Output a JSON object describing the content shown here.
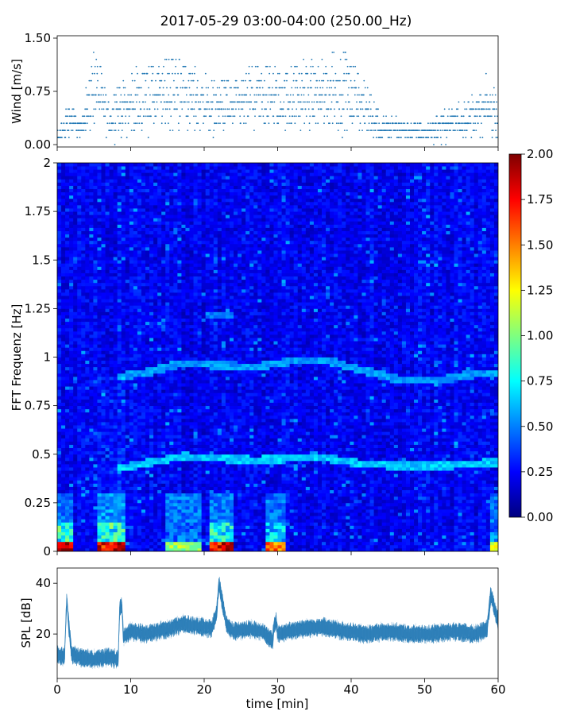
{
  "title": "2017-05-29 03:00-04:00 (250.00_Hz)",
  "colors": {
    "series": "#1f77b4",
    "colormap": [
      "#00007f",
      "#0000ff",
      "#007fff",
      "#00ffff",
      "#7fff7f",
      "#ffff00",
      "#ff7f00",
      "#ff0000",
      "#7f0000"
    ]
  },
  "chart_data": [
    {
      "type": "scatter",
      "ylabel": "Wind [m/s]",
      "xlabel": "",
      "xlim": [
        0,
        60
      ],
      "ylim": [
        0,
        1.5
      ],
      "yticks": [
        "0.00",
        "0.75",
        "1.50"
      ],
      "grid": false,
      "note_levels": [
        0.0,
        0.1,
        0.2,
        0.3,
        0.4,
        0.5,
        0.6,
        0.7,
        0.8,
        0.9,
        1.0,
        1.1,
        1.2,
        1.3,
        1.4,
        1.5
      ],
      "samples": [
        {
          "x": 0.2,
          "y": 0.2
        },
        {
          "x": 1.0,
          "y": 0.4
        },
        {
          "x": 1.8,
          "y": 0.7
        },
        {
          "x": 2.5,
          "y": 0.5
        },
        {
          "x": 3.2,
          "y": 0.3
        },
        {
          "x": 4.0,
          "y": 0.9
        },
        {
          "x": 5.5,
          "y": 1.5
        },
        {
          "x": 5.6,
          "y": 1.3
        },
        {
          "x": 7.0,
          "y": 0.6
        },
        {
          "x": 9.0,
          "y": 0.9
        },
        {
          "x": 15.5,
          "y": 1.2
        },
        {
          "x": 18.5,
          "y": 1.1
        },
        {
          "x": 21.0,
          "y": 0.9
        },
        {
          "x": 24.5,
          "y": 0.9
        },
        {
          "x": 26.5,
          "y": 1.1
        },
        {
          "x": 30.5,
          "y": 1.1
        },
        {
          "x": 39.5,
          "y": 1.3
        },
        {
          "x": 44.0,
          "y": 0.4
        },
        {
          "x": 50.0,
          "y": 0.3
        },
        {
          "x": 57.0,
          "y": 0.7
        },
        {
          "x": 58.5,
          "y": 0.9
        },
        {
          "x": 60.0,
          "y": 0.7
        }
      ]
    },
    {
      "type": "heatmap",
      "ylabel": "FFT Frequenz [Hz]",
      "xlabel": "",
      "xlim": [
        0,
        60
      ],
      "ylim": [
        0,
        2
      ],
      "yticks": [
        "0",
        "0.25",
        "0.5",
        "0.75",
        "1",
        "1.25",
        "1.5",
        "1.75",
        "2"
      ],
      "colorbar": {
        "range": [
          0.0,
          2.0
        ],
        "ticks": [
          "0.00",
          "0.25",
          "0.50",
          "0.75",
          "1.00",
          "1.25",
          "1.50",
          "1.75",
          "2.00"
        ]
      },
      "background_level": 0.2,
      "ridges": [
        {
          "x": [
            8,
            10,
            13,
            17,
            22,
            27,
            32,
            37,
            42,
            47,
            52,
            56,
            60
          ],
          "y": [
            0.42,
            0.44,
            0.46,
            0.49,
            0.48,
            0.47,
            0.48,
            0.48,
            0.45,
            0.44,
            0.44,
            0.45,
            0.46
          ],
          "level": 0.65
        },
        {
          "x": [
            8,
            12,
            17,
            22,
            27,
            32,
            37,
            42,
            47,
            52,
            56,
            60
          ],
          "y": [
            0.9,
            0.92,
            0.97,
            0.96,
            0.95,
            0.98,
            0.98,
            0.93,
            0.88,
            0.88,
            0.91,
            0.92
          ],
          "level": 0.55
        },
        {
          "x": [
            20,
            22,
            24
          ],
          "y": [
            1.22,
            1.22,
            1.22
          ],
          "level": 0.5
        }
      ],
      "low_frequency_patches": [
        {
          "x0": 0,
          "x1": 2,
          "level": 2.0
        },
        {
          "x0": 5.5,
          "x1": 9.5,
          "level": 1.8
        },
        {
          "x0": 15,
          "x1": 19.5,
          "level": 1.1
        },
        {
          "x0": 20.5,
          "x1": 24,
          "level": 1.9
        },
        {
          "x0": 28.5,
          "x1": 31,
          "level": 1.6
        },
        {
          "x0": 59,
          "x1": 60,
          "level": 1.2
        }
      ]
    },
    {
      "type": "line",
      "ylabel": "SPL [dB]",
      "xlabel": "time [min]",
      "xlim": [
        0,
        60
      ],
      "ylim": [
        2.5,
        46
      ],
      "yticks": [
        "20",
        "40"
      ],
      "xticks": [
        "0",
        "10",
        "20",
        "30",
        "40",
        "50",
        "60"
      ],
      "grid": false,
      "series": [
        {
          "x": [
            0,
            1,
            1.3,
            1.6,
            2,
            3,
            5,
            7,
            8.3,
            8.5,
            8.8,
            9,
            10,
            12,
            15,
            17,
            19,
            21,
            21.7,
            22,
            22.4,
            23,
            24,
            26,
            28,
            29.3,
            29.5,
            29.8,
            30,
            33,
            36,
            39,
            42,
            45,
            48,
            51,
            54,
            57,
            58.5,
            59,
            59.5,
            60
          ],
          "y": [
            12,
            11,
            34,
            22,
            12,
            11,
            10,
            11,
            10,
            30,
            31,
            19,
            21,
            20,
            22,
            24,
            23,
            22,
            28,
            40,
            34,
            24,
            21,
            22,
            21,
            17,
            23,
            25,
            20,
            22,
            23,
            21,
            20,
            21,
            20,
            20,
            21,
            20,
            22,
            36,
            30,
            25
          ],
          "band": 2.5
        }
      ]
    }
  ]
}
